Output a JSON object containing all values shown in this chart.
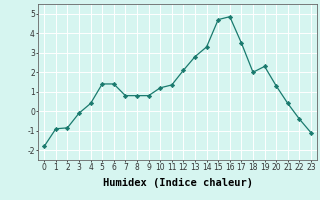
{
  "x": [
    0,
    1,
    2,
    3,
    4,
    5,
    6,
    7,
    8,
    9,
    10,
    11,
    12,
    13,
    14,
    15,
    16,
    17,
    18,
    19,
    20,
    21,
    22,
    23
  ],
  "y": [
    -1.8,
    -0.9,
    -0.85,
    -0.1,
    0.4,
    1.4,
    1.4,
    0.8,
    0.8,
    0.8,
    1.2,
    1.35,
    2.1,
    2.8,
    3.3,
    4.7,
    4.85,
    3.5,
    2.0,
    2.3,
    1.3,
    0.4,
    -0.4,
    -1.1
  ],
  "xlabel": "Humidex (Indice chaleur)",
  "xlim": [
    -0.5,
    23.5
  ],
  "ylim": [
    -2.5,
    5.5
  ],
  "yticks": [
    -2,
    -1,
    0,
    1,
    2,
    3,
    4,
    5
  ],
  "xticks": [
    0,
    1,
    2,
    3,
    4,
    5,
    6,
    7,
    8,
    9,
    10,
    11,
    12,
    13,
    14,
    15,
    16,
    17,
    18,
    19,
    20,
    21,
    22,
    23
  ],
  "line_color": "#1a7a6e",
  "marker_color": "#1a7a6e",
  "bg_color": "#d6f5f0",
  "grid_color": "#ffffff",
  "tick_fontsize": 5.5,
  "xlabel_fontsize": 7.5
}
